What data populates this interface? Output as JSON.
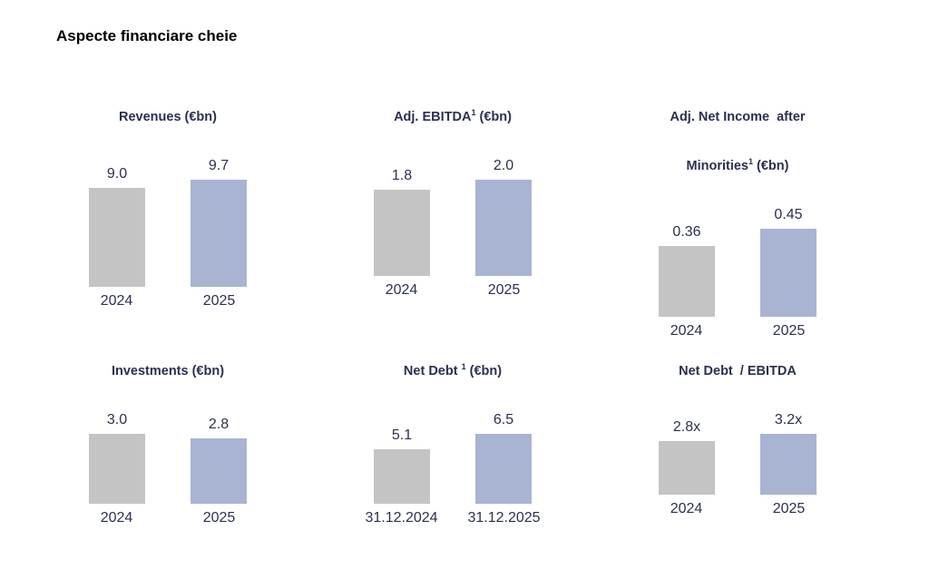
{
  "page": {
    "title": "Aspecte financiare cheie"
  },
  "colors": {
    "bar_2024": "#C4C4C5",
    "bar_2025": "#A8B4D2",
    "chart_text": "#2B3050",
    "axis_line": "#7F7F83",
    "page_title_text": "#000000"
  },
  "chart_data": [
    {
      "type": "bar",
      "title": "Revenues (€bn)",
      "title_lines": [
        {
          "pre": "Revenues (€bn)",
          "sup": "",
          "post": ""
        }
      ],
      "categories": [
        "2024",
        "2025"
      ],
      "values": [
        9.0,
        9.7
      ],
      "value_labels": [
        "9.0",
        "9.7"
      ],
      "ylim": [
        0,
        9.7
      ],
      "grid": false,
      "legend": "none"
    },
    {
      "type": "bar",
      "title": "Adj. EBITDA¹ (€bn)",
      "title_lines": [
        {
          "pre": "Adj. EBITDA",
          "sup": "1",
          "post": " (€bn)"
        }
      ],
      "categories": [
        "2024",
        "2025"
      ],
      "values": [
        1.8,
        2.0
      ],
      "value_labels": [
        "1.8",
        "2.0"
      ],
      "ylim": [
        0,
        2.0
      ],
      "grid": false,
      "legend": "none"
    },
    {
      "type": "bar",
      "title": "Adj. Net Income after Minorities¹ (€bn)",
      "title_lines": [
        {
          "pre": "Adj. Net Income  after",
          "sup": "",
          "post": ""
        },
        {
          "pre": "Minorities",
          "sup": "1",
          "post": " (€bn)"
        }
      ],
      "categories": [
        "2024",
        "2025"
      ],
      "values": [
        0.36,
        0.45
      ],
      "value_labels": [
        "0.36",
        "0.45"
      ],
      "ylim": [
        0,
        0.45
      ],
      "grid": false,
      "legend": "none"
    },
    {
      "type": "bar",
      "title": "Investments (€bn)",
      "title_lines": [
        {
          "pre": "Investments (€bn)",
          "sup": "",
          "post": ""
        }
      ],
      "categories": [
        "2024",
        "2025"
      ],
      "values": [
        3.0,
        2.8
      ],
      "value_labels": [
        "3.0",
        "2.8"
      ],
      "ylim": [
        0,
        3.0
      ],
      "grid": false,
      "legend": "none"
    },
    {
      "type": "bar",
      "title": "Net Debt¹ (€bn)",
      "title_lines": [
        {
          "pre": "Net Debt ",
          "sup": "1",
          "post": " (€bn)"
        }
      ],
      "categories": [
        "31.12.2024",
        "31.12.2025"
      ],
      "values": [
        5.1,
        6.5
      ],
      "value_labels": [
        "5.1",
        "6.5"
      ],
      "ylim": [
        0,
        6.5
      ],
      "grid": false,
      "legend": "none"
    },
    {
      "type": "bar",
      "title": "Net Debt / EBITDA",
      "title_lines": [
        {
          "pre": "Net Debt  / EBITDA",
          "sup": "",
          "post": ""
        }
      ],
      "categories": [
        "2024",
        "2025"
      ],
      "values": [
        2.8,
        3.2
      ],
      "value_labels": [
        "2.8x",
        "3.2x"
      ],
      "ylim": [
        0,
        3.2
      ],
      "grid": false,
      "legend": "none"
    }
  ]
}
